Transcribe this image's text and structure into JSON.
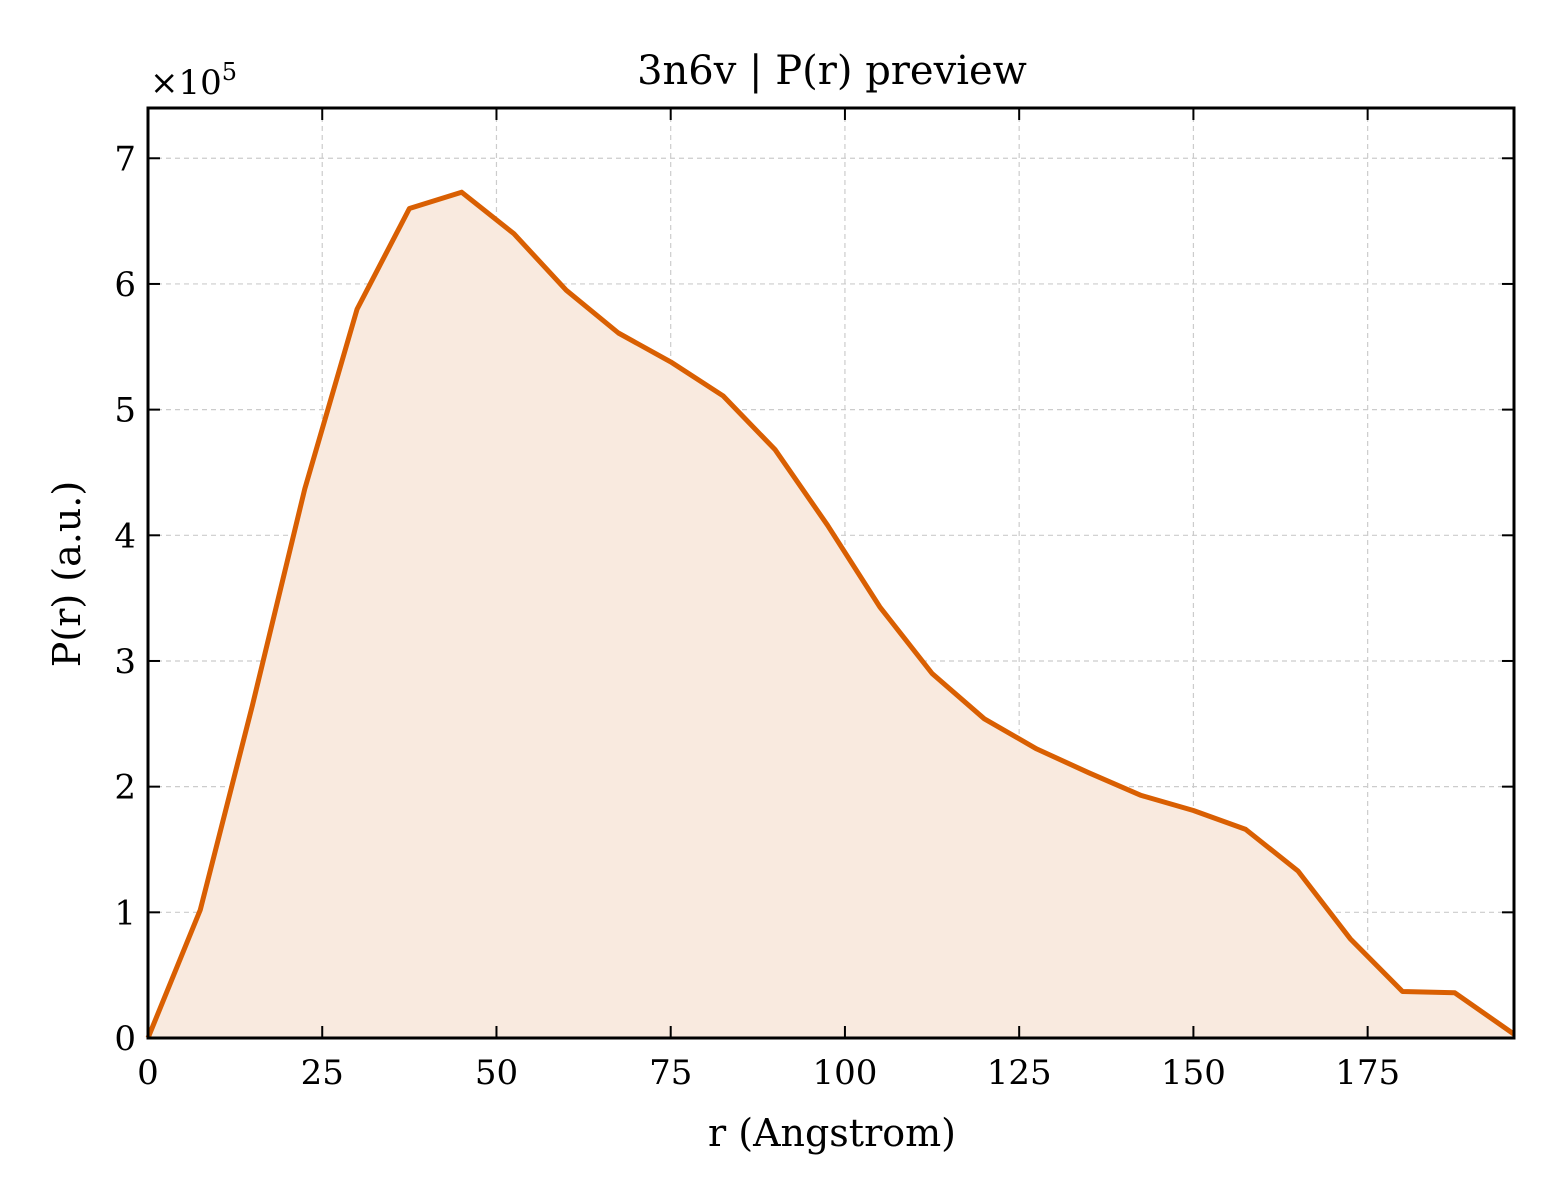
{
  "chart_data": {
    "type": "area",
    "title": "3n6v | P(r) preview",
    "xlabel": "r (Angstrom)",
    "ylabel": "P(r) (a.u.)",
    "y_offset_text": "×10",
    "y_offset_exponent": "5",
    "xlim": [
      0,
      196
    ],
    "ylim": [
      0,
      740000
    ],
    "x_ticks": [
      0,
      25,
      50,
      75,
      100,
      125,
      150,
      175
    ],
    "x_tick_labels": [
      "0",
      "25",
      "50",
      "75",
      "100",
      "125",
      "150",
      "175"
    ],
    "y_ticks": [
      0,
      100000,
      200000,
      300000,
      400000,
      500000,
      600000,
      700000
    ],
    "y_tick_labels": [
      "0",
      "1",
      "2",
      "3",
      "4",
      "5",
      "6",
      "7"
    ],
    "grid": true,
    "line_color": "#d95f02",
    "fill_color": "#f9eadf",
    "series": [
      {
        "x": [
          0,
          7.5,
          15,
          22.5,
          30,
          37.5,
          45,
          52.5,
          60,
          67.5,
          75,
          82.5,
          90,
          97.5,
          105,
          112.5,
          120,
          127.5,
          135,
          142.5,
          150,
          157.5,
          165,
          172.5,
          180,
          187.5,
          196
        ],
        "values": [
          0,
          102000,
          265000,
          437000,
          580000,
          660000,
          673000,
          640000,
          595000,
          561000,
          538000,
          511000,
          468000,
          408000,
          343000,
          290000,
          254000,
          230000,
          211000,
          193000,
          181000,
          166000,
          133000,
          79000,
          37000,
          36000,
          3000
        ]
      }
    ]
  }
}
